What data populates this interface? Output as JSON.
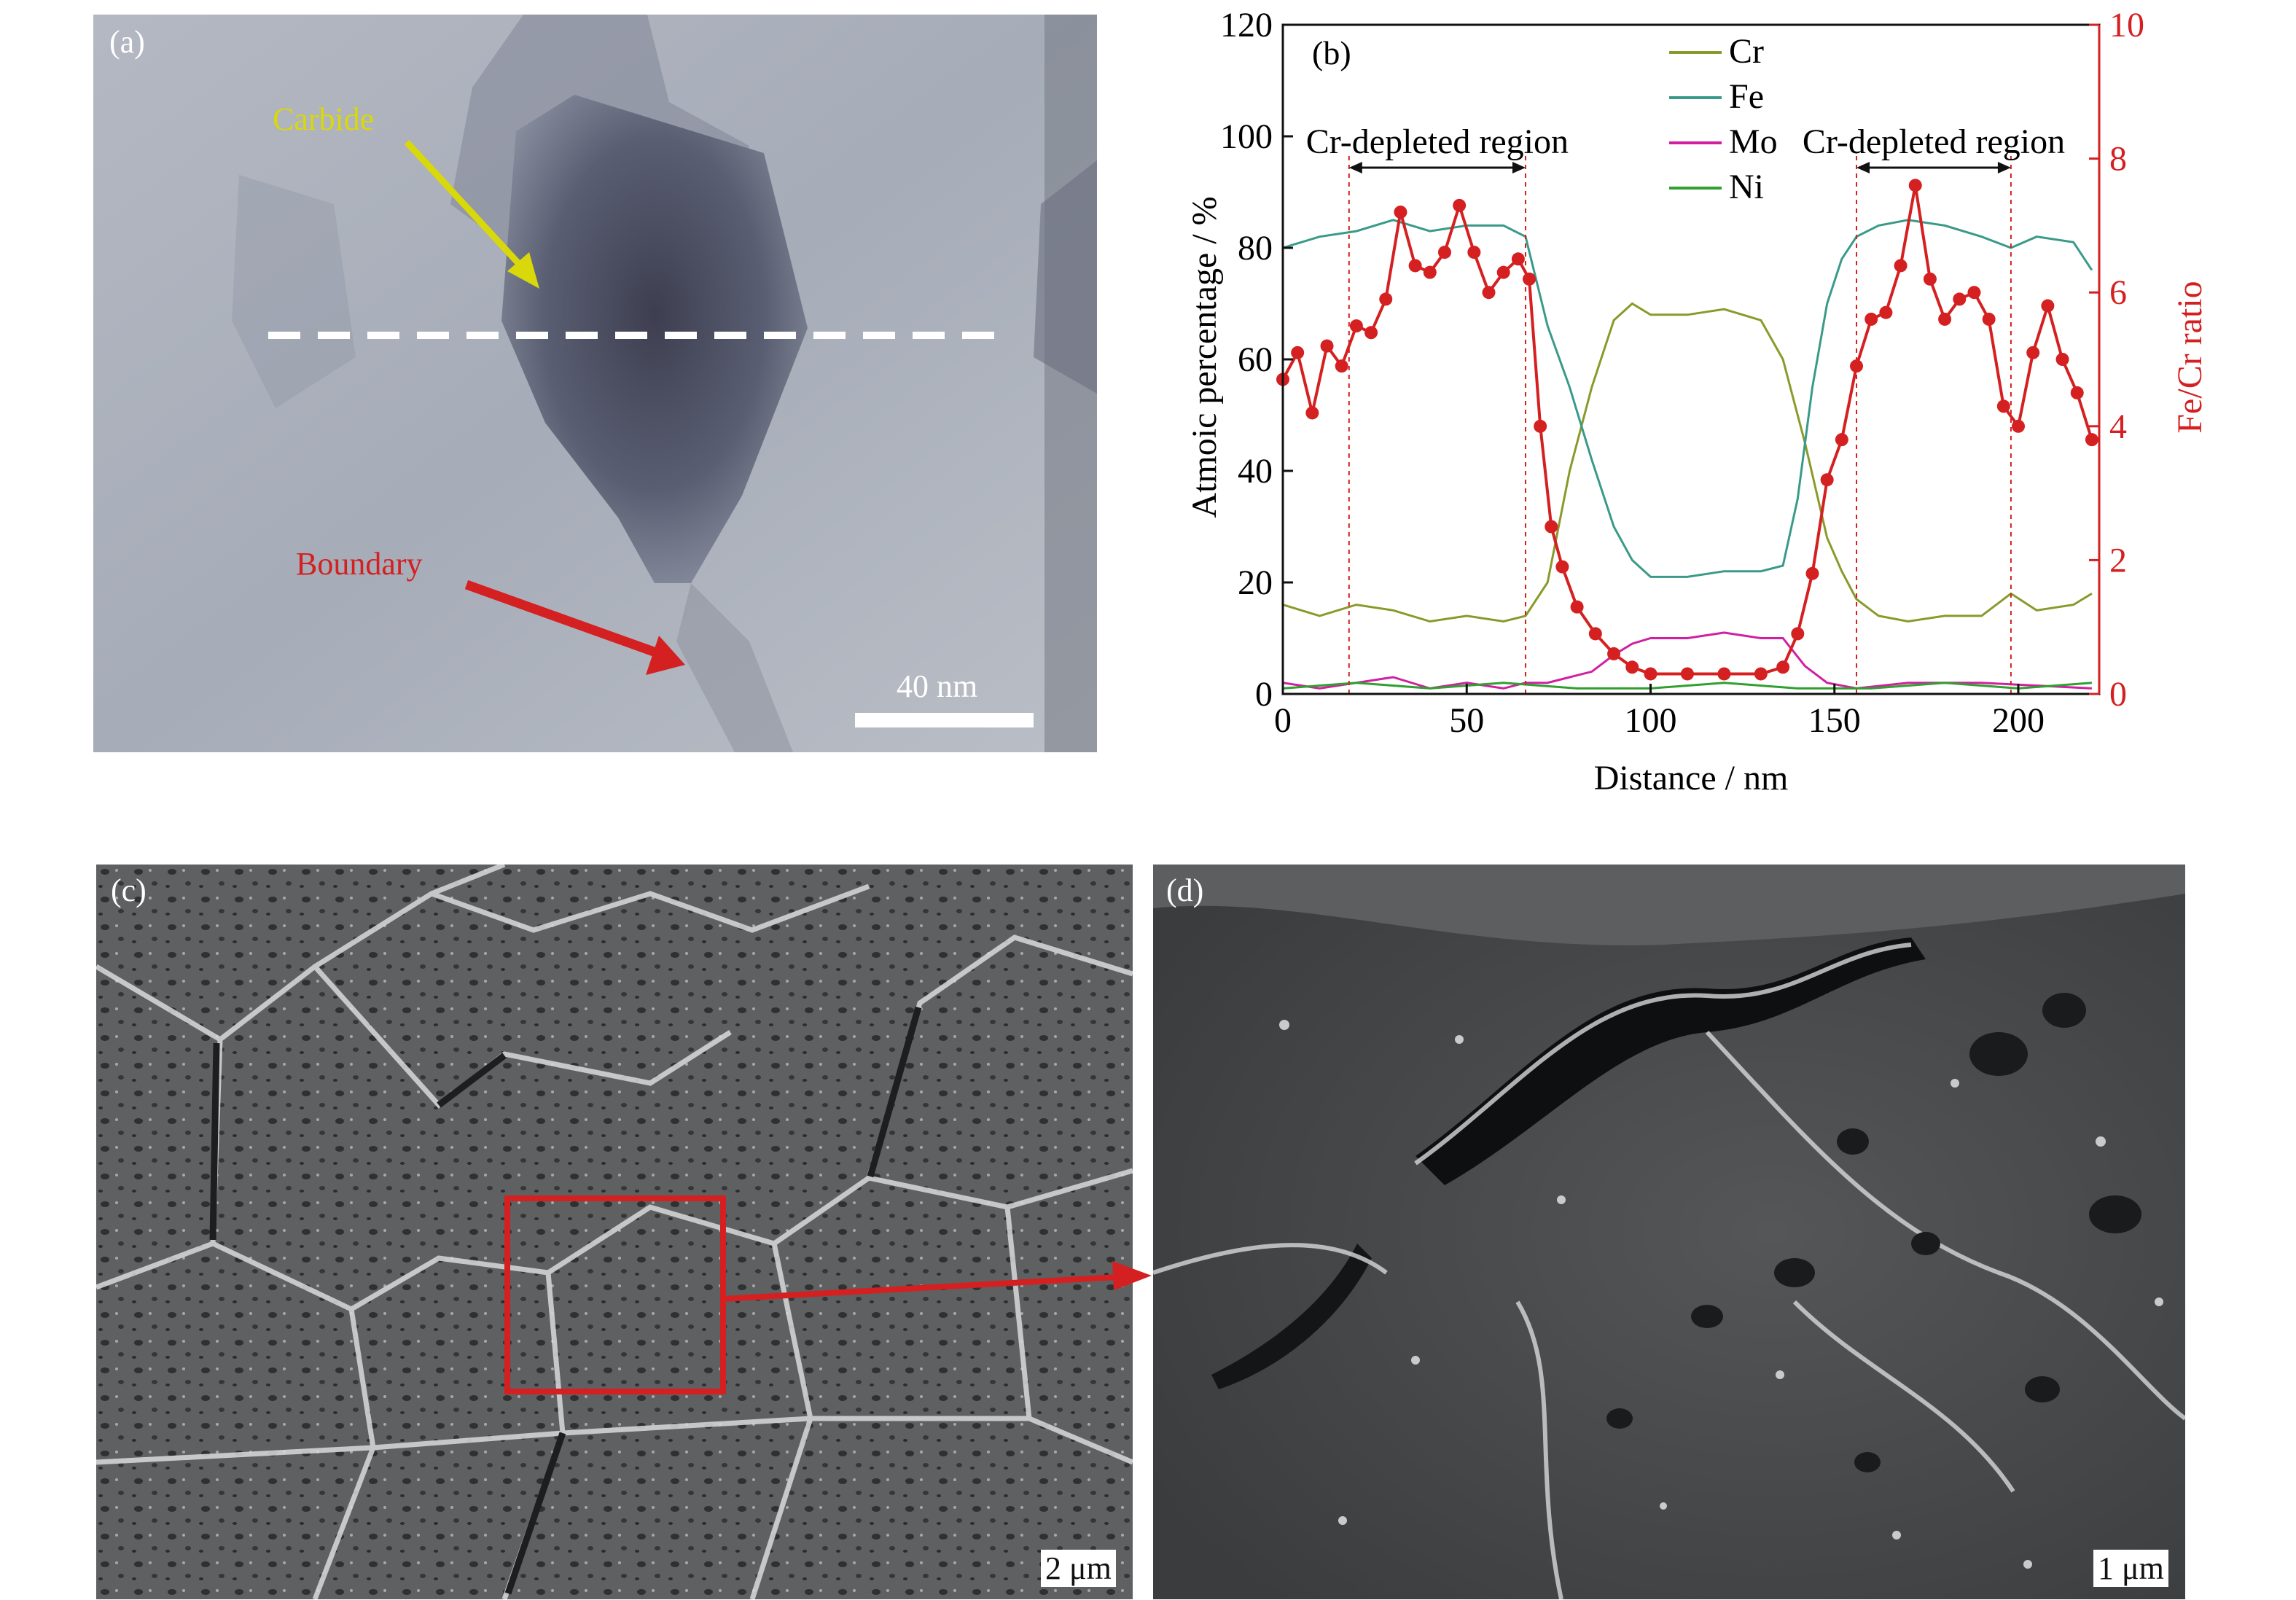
{
  "panels": {
    "a": {
      "label": "(a)",
      "carbide_label": "Carbide",
      "boundary_label": "Boundary",
      "scalebar": "40 nm",
      "carbide_color": "#d8d80a",
      "boundary_color": "#d42020"
    },
    "c": {
      "label": "(c)",
      "scalebar": "2 μm"
    },
    "d": {
      "label": "(d)",
      "scalebar": "1 μm"
    }
  },
  "chart_data": {
    "type": "line",
    "panel_label": "(b)",
    "xlabel": "Distance / nm",
    "ylabel": "Atmoic percentage / %",
    "y2label": "Fe/Cr ratio",
    "xlim": [
      0,
      222
    ],
    "ylim": [
      0,
      120
    ],
    "y2lim": [
      0,
      10
    ],
    "xticks": [
      0,
      50,
      100,
      150,
      200
    ],
    "yticks": [
      0,
      20,
      40,
      60,
      80,
      100,
      120
    ],
    "y2ticks": [
      0,
      2,
      4,
      6,
      8,
      10
    ],
    "legend_position": "top-center",
    "annotations": [
      {
        "text": "Cr-depleted region",
        "from": 18,
        "to": 66
      },
      {
        "text": "Cr-depleted region",
        "from": 156,
        "to": 198
      }
    ],
    "series": [
      {
        "name": "Cr",
        "color": "#8a9a2a",
        "axis": "left",
        "x": [
          0,
          10,
          20,
          30,
          40,
          50,
          60,
          66,
          72,
          78,
          84,
          90,
          95,
          100,
          110,
          120,
          130,
          136,
          142,
          148,
          152,
          156,
          162,
          170,
          180,
          190,
          198,
          205,
          215,
          220
        ],
        "y": [
          16,
          14,
          16,
          15,
          13,
          14,
          13,
          14,
          20,
          40,
          55,
          67,
          70,
          68,
          68,
          69,
          67,
          60,
          45,
          28,
          22,
          17,
          14,
          13,
          14,
          14,
          18,
          15,
          16,
          18
        ]
      },
      {
        "name": "Fe",
        "color": "#3a9a8a",
        "axis": "left",
        "x": [
          0,
          10,
          20,
          30,
          40,
          50,
          60,
          66,
          72,
          78,
          84,
          90,
          95,
          100,
          110,
          120,
          130,
          136,
          140,
          144,
          148,
          152,
          156,
          162,
          170,
          180,
          190,
          198,
          205,
          215,
          220
        ],
        "y": [
          80,
          82,
          83,
          85,
          83,
          84,
          84,
          82,
          66,
          55,
          42,
          30,
          24,
          21,
          21,
          22,
          22,
          23,
          35,
          55,
          70,
          78,
          82,
          84,
          85,
          84,
          82,
          80,
          82,
          81,
          76
        ]
      },
      {
        "name": "Mo",
        "color": "#d020a0",
        "axis": "left",
        "x": [
          0,
          10,
          20,
          30,
          40,
          50,
          60,
          66,
          72,
          78,
          84,
          90,
          95,
          100,
          110,
          120,
          130,
          136,
          142,
          148,
          156,
          170,
          190,
          220
        ],
        "y": [
          2,
          1,
          2,
          3,
          1,
          2,
          1,
          2,
          2,
          3,
          4,
          7,
          9,
          10,
          10,
          11,
          10,
          10,
          5,
          2,
          1,
          2,
          2,
          1
        ]
      },
      {
        "name": "Ni",
        "color": "#30a030",
        "axis": "left",
        "x": [
          0,
          20,
          40,
          60,
          80,
          100,
          120,
          140,
          160,
          180,
          200,
          220
        ],
        "y": [
          1,
          2,
          1,
          2,
          1,
          1,
          2,
          1,
          1,
          2,
          1,
          2
        ]
      },
      {
        "name": "Fe/Cr",
        "color": "#d42020",
        "axis": "right",
        "x": [
          0,
          4,
          8,
          12,
          16,
          20,
          24,
          28,
          32,
          36,
          40,
          44,
          48,
          52,
          56,
          60,
          64,
          67,
          70,
          73,
          76,
          80,
          85,
          90,
          95,
          100,
          110,
          120,
          130,
          136,
          140,
          144,
          148,
          152,
          156,
          160,
          164,
          168,
          172,
          176,
          180,
          184,
          188,
          192,
          196,
          200,
          204,
          208,
          212,
          216,
          220
        ],
        "y": [
          4.7,
          5.1,
          4.2,
          5.2,
          4.9,
          5.5,
          5.4,
          5.9,
          7.2,
          6.4,
          6.3,
          6.6,
          7.3,
          6.6,
          6.0,
          6.3,
          6.5,
          6.2,
          4.0,
          2.5,
          1.9,
          1.3,
          0.9,
          0.6,
          0.4,
          0.3,
          0.3,
          0.3,
          0.3,
          0.4,
          0.9,
          1.8,
          3.2,
          3.8,
          4.9,
          5.6,
          5.7,
          6.4,
          7.6,
          6.2,
          5.6,
          5.9,
          6.0,
          5.6,
          4.3,
          4.0,
          5.1,
          5.8,
          5.0,
          4.5,
          3.8
        ]
      }
    ]
  }
}
